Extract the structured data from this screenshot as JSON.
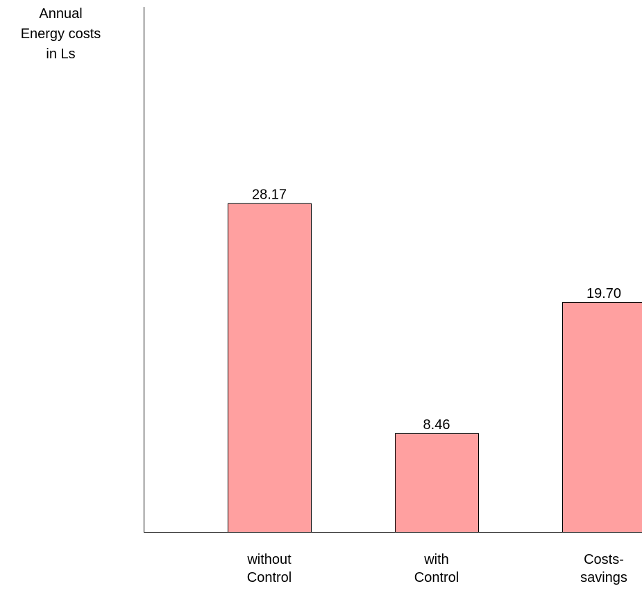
{
  "chart_data": {
    "type": "bar",
    "title": "",
    "ylabel_lines": [
      "Annual",
      "Energy costs",
      "in Ls"
    ],
    "xlabel": "",
    "categories": [
      [
        "without",
        "Control"
      ],
      [
        "with",
        "Control"
      ],
      [
        "Costs-",
        "savings"
      ]
    ],
    "values": [
      28.17,
      8.46,
      19.7
    ],
    "data_labels": [
      "28.17",
      "8.46",
      "19.70"
    ],
    "ylim": [
      0,
      45
    ],
    "grid": false,
    "legend": "none",
    "bar_color": "#ffa0a0",
    "bar_edge_color": "#000000"
  }
}
